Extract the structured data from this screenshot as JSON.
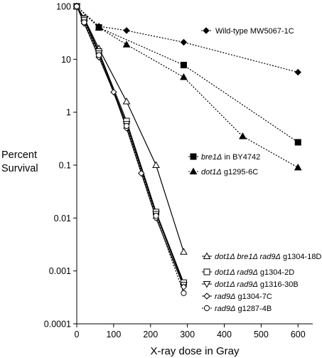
{
  "chart_data": {
    "type": "line",
    "title": "",
    "xlabel": "X-ray dose in Gray",
    "ylabel_lines": [
      "Percent",
      "Survival"
    ],
    "xlim": [
      0,
      640
    ],
    "ylim": [
      0.0001,
      100
    ],
    "yscale": "log",
    "grid": false,
    "x_ticks": [
      0,
      100,
      200,
      300,
      400,
      500,
      600
    ],
    "x_tick_labels": [
      "0",
      "100",
      "200",
      "300",
      "400",
      "500",
      "600"
    ],
    "y_ticks": [
      100,
      10,
      1,
      0.1,
      0.01,
      0.001,
      0.0001
    ],
    "y_tick_labels": [
      "100",
      "10",
      "1",
      "0.1",
      "0.01",
      "0.001",
      "0.0001"
    ],
    "series": [
      {
        "name_parts": [
          {
            "t": "Wild-type MW5067-1C",
            "i": false
          }
        ],
        "marker": "diamond",
        "fill": true,
        "dash": "dotted",
        "x": [
          0,
          60,
          135,
          290,
          600
        ],
        "y": [
          100,
          42,
          35,
          21,
          5.7
        ]
      },
      {
        "name_parts": [
          {
            "t": "bre1Δ",
            "i": true
          },
          {
            "t": " in BY4742",
            "i": false
          }
        ],
        "marker": "square",
        "fill": true,
        "dash": "dotted",
        "x": [
          0,
          60,
          290,
          600
        ],
        "y": [
          100,
          40,
          7.8,
          0.27
        ]
      },
      {
        "name_parts": [
          {
            "t": "dot1Δ",
            "i": true
          },
          {
            "t": " g1295-6C",
            "i": false
          }
        ],
        "marker": "triangle",
        "fill": true,
        "dash": "dotted",
        "x": [
          0,
          60,
          135,
          290,
          450,
          600
        ],
        "y": [
          100,
          40,
          19,
          4.6,
          0.35,
          0.09
        ]
      },
      {
        "name_parts": [
          {
            "t": "dot1Δ bre1Δ rad9Δ",
            "i": true
          },
          {
            "t": " g1304-18D",
            "i": false
          }
        ],
        "marker": "triangle",
        "fill": false,
        "dash": "solid",
        "x": [
          0,
          20,
          60,
          135,
          215,
          290
        ],
        "y": [
          100,
          60,
          16,
          1.6,
          0.1,
          0.0023
        ]
      },
      {
        "name_parts": [
          {
            "t": "dot1Δ rad9Δ",
            "i": true
          },
          {
            "t": " g1304-2D",
            "i": false
          }
        ],
        "marker": "square",
        "fill": false,
        "dash": "solid",
        "x": [
          0,
          20,
          60,
          135,
          215,
          290
        ],
        "y": [
          100,
          58,
          14,
          0.68,
          0.013,
          0.0006
        ]
      },
      {
        "name_parts": [
          {
            "t": "dot1Δ rad9Δ",
            "i": true
          },
          {
            "t": " g1316-30B",
            "i": false
          }
        ],
        "marker": "triangledown",
        "fill": false,
        "dash": "solid",
        "x": [
          0,
          20,
          60,
          135,
          215,
          290
        ],
        "y": [
          100,
          55,
          13,
          0.6,
          0.012,
          0.00055
        ]
      },
      {
        "name_parts": [
          {
            "t": "rad9Δ",
            "i": true
          },
          {
            "t": " g1304-7C",
            "i": false
          }
        ],
        "marker": "diamond",
        "fill": false,
        "dash": "solid",
        "x": [
          0,
          20,
          60,
          100,
          135,
          175,
          215,
          290
        ],
        "y": [
          100,
          48,
          11,
          2.4,
          0.5,
          0.07,
          0.01,
          0.0005
        ]
      },
      {
        "name_parts": [
          {
            "t": "rad9Δ",
            "i": true
          },
          {
            "t": " g1287-4B",
            "i": false
          }
        ],
        "marker": "circle",
        "fill": false,
        "dash": "dotted",
        "x": [
          0,
          20,
          60,
          135,
          215,
          290
        ],
        "y": [
          100,
          50,
          12,
          0.55,
          0.011,
          0.00038
        ]
      }
    ]
  }
}
